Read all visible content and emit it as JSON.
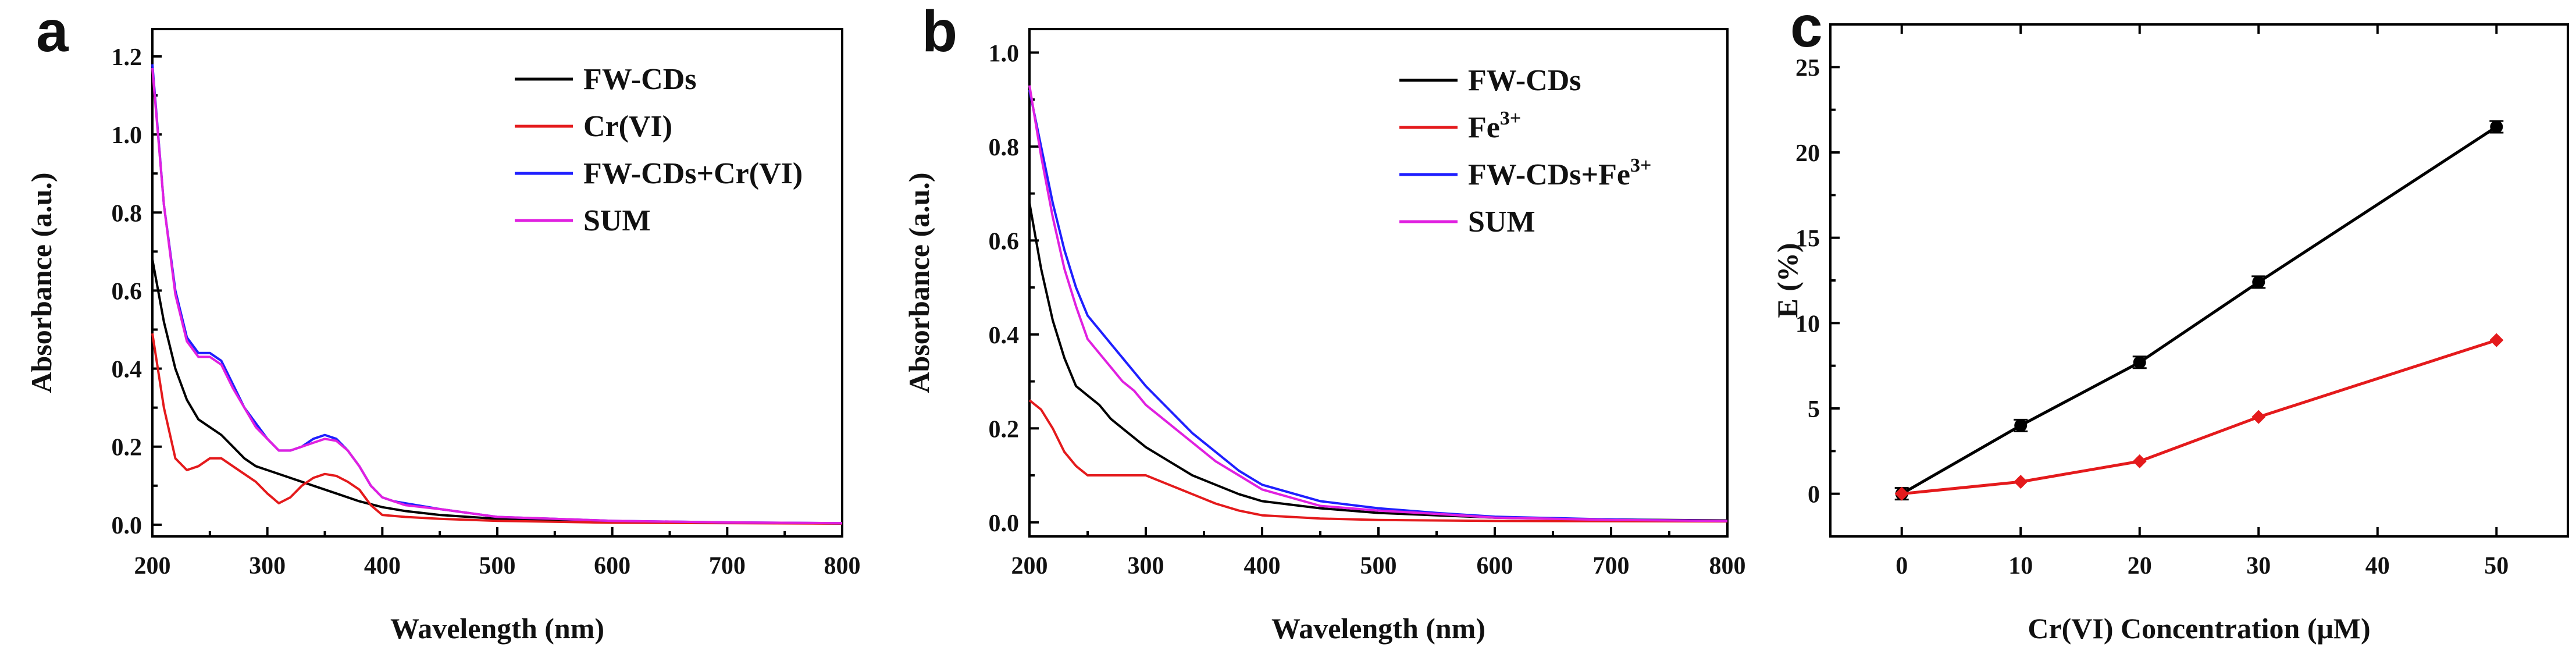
{
  "chart_data": [
    {
      "type": "line",
      "panel": "a",
      "xlabel": "Wavelength (nm)",
      "ylabel": "Absorbance (a.u.)",
      "xlim": [
        200,
        800
      ],
      "ylim": [
        -0.03,
        1.27
      ],
      "xticks": [
        200,
        300,
        400,
        500,
        600,
        700,
        800
      ],
      "yticks": [
        0.0,
        0.2,
        0.4,
        0.6,
        0.8,
        1.0,
        1.2
      ],
      "ytick_labels": [
        "0.0",
        "0.2",
        "0.4",
        "0.6",
        "0.8",
        "1.0",
        "1.2"
      ],
      "legend_position": "top-right",
      "series": [
        {
          "name": "FW-CDs",
          "color": "#000000",
          "x": [
            200,
            210,
            220,
            230,
            240,
            250,
            260,
            270,
            280,
            290,
            300,
            320,
            340,
            360,
            380,
            400,
            420,
            450,
            500,
            550,
            600,
            700,
            800
          ],
          "y": [
            0.68,
            0.52,
            0.4,
            0.32,
            0.27,
            0.25,
            0.23,
            0.2,
            0.17,
            0.15,
            0.14,
            0.12,
            0.1,
            0.08,
            0.06,
            0.045,
            0.035,
            0.025,
            0.015,
            0.01,
            0.008,
            0.005,
            0.003
          ]
        },
        {
          "name": "Cr(VI)",
          "color": "#e41a1c",
          "x": [
            200,
            210,
            220,
            230,
            240,
            250,
            260,
            270,
            280,
            290,
            300,
            310,
            320,
            330,
            340,
            350,
            360,
            370,
            380,
            390,
            400,
            420,
            450,
            500,
            600,
            800
          ],
          "y": [
            0.49,
            0.3,
            0.17,
            0.14,
            0.15,
            0.17,
            0.17,
            0.15,
            0.13,
            0.11,
            0.08,
            0.055,
            0.07,
            0.1,
            0.12,
            0.13,
            0.125,
            0.11,
            0.09,
            0.05,
            0.025,
            0.02,
            0.015,
            0.01,
            0.005,
            0.003
          ]
        },
        {
          "name": "FW-CDs+Cr(VI)",
          "color": "#1f1fff",
          "x": [
            200,
            210,
            220,
            230,
            240,
            250,
            260,
            270,
            280,
            290,
            300,
            310,
            320,
            330,
            340,
            350,
            360,
            370,
            380,
            390,
            400,
            410,
            420,
            450,
            500,
            550,
            600,
            700,
            800
          ],
          "y": [
            1.18,
            0.82,
            0.6,
            0.48,
            0.44,
            0.44,
            0.42,
            0.36,
            0.3,
            0.26,
            0.22,
            0.19,
            0.19,
            0.2,
            0.22,
            0.23,
            0.22,
            0.19,
            0.15,
            0.1,
            0.07,
            0.06,
            0.055,
            0.04,
            0.02,
            0.015,
            0.01,
            0.006,
            0.004
          ]
        },
        {
          "name": "SUM",
          "color": "#e020e0",
          "x": [
            200,
            210,
            220,
            230,
            240,
            250,
            260,
            270,
            280,
            290,
            300,
            310,
            320,
            330,
            340,
            350,
            360,
            370,
            380,
            390,
            400,
            410,
            420,
            450,
            500,
            550,
            600,
            700,
            800
          ],
          "y": [
            1.17,
            0.82,
            0.59,
            0.47,
            0.43,
            0.43,
            0.41,
            0.35,
            0.3,
            0.25,
            0.22,
            0.19,
            0.19,
            0.2,
            0.21,
            0.22,
            0.215,
            0.19,
            0.15,
            0.1,
            0.07,
            0.06,
            0.05,
            0.04,
            0.02,
            0.015,
            0.01,
            0.006,
            0.004
          ]
        }
      ]
    },
    {
      "type": "line",
      "panel": "b",
      "xlabel": "Wavelength (nm)",
      "ylabel": "Absorbance (a.u.)",
      "xlim": [
        200,
        800
      ],
      "ylim": [
        -0.03,
        1.05
      ],
      "xticks": [
        200,
        300,
        400,
        500,
        600,
        700,
        800
      ],
      "yticks": [
        0.0,
        0.2,
        0.4,
        0.6,
        0.8,
        1.0
      ],
      "ytick_labels": [
        "0.0",
        "0.2",
        "0.4",
        "0.6",
        "0.8",
        "1.0"
      ],
      "legend_position": "top-right",
      "series": [
        {
          "name": "FW-CDs",
          "sup": "",
          "color": "#000000",
          "x": [
            200,
            210,
            220,
            230,
            240,
            250,
            260,
            270,
            280,
            290,
            300,
            320,
            340,
            360,
            380,
            400,
            450,
            500,
            550,
            600,
            700,
            800
          ],
          "y": [
            0.68,
            0.54,
            0.43,
            0.35,
            0.29,
            0.27,
            0.25,
            0.22,
            0.2,
            0.18,
            0.16,
            0.13,
            0.1,
            0.08,
            0.06,
            0.045,
            0.03,
            0.02,
            0.015,
            0.01,
            0.006,
            0.004
          ]
        },
        {
          "name": "Fe",
          "sup": "3+",
          "color": "#e41a1c",
          "x": [
            200,
            210,
            220,
            230,
            240,
            250,
            260,
            270,
            280,
            290,
            300,
            320,
            340,
            360,
            380,
            400,
            450,
            500,
            600,
            800
          ],
          "y": [
            0.26,
            0.24,
            0.2,
            0.15,
            0.12,
            0.1,
            0.1,
            0.1,
            0.1,
            0.1,
            0.1,
            0.08,
            0.06,
            0.04,
            0.025,
            0.015,
            0.008,
            0.005,
            0.003,
            0.002
          ]
        },
        {
          "name": "FW-CDs+Fe",
          "sup": "3+",
          "color": "#1f1fff",
          "x": [
            200,
            210,
            220,
            230,
            240,
            250,
            260,
            270,
            280,
            290,
            300,
            320,
            340,
            360,
            380,
            400,
            450,
            500,
            550,
            600,
            700,
            800
          ],
          "y": [
            0.92,
            0.8,
            0.68,
            0.58,
            0.5,
            0.44,
            0.41,
            0.38,
            0.35,
            0.32,
            0.29,
            0.24,
            0.19,
            0.15,
            0.11,
            0.08,
            0.045,
            0.03,
            0.02,
            0.012,
            0.006,
            0.003
          ]
        },
        {
          "name": "SUM",
          "sup": "",
          "color": "#e020e0",
          "x": [
            200,
            210,
            220,
            230,
            240,
            250,
            260,
            270,
            280,
            290,
            300,
            320,
            340,
            360,
            380,
            400,
            450,
            500,
            550,
            600,
            700,
            800
          ],
          "y": [
            0.93,
            0.78,
            0.65,
            0.54,
            0.46,
            0.39,
            0.36,
            0.33,
            0.3,
            0.28,
            0.25,
            0.21,
            0.17,
            0.13,
            0.1,
            0.07,
            0.035,
            0.025,
            0.018,
            0.01,
            0.005,
            0.003
          ]
        }
      ]
    },
    {
      "type": "line",
      "panel": "c",
      "xlabel": "Cr(VI) Concentration (μM)",
      "ylabel": "E (%)",
      "xlim": [
        -6,
        56
      ],
      "ylim": [
        -2.5,
        27.5
      ],
      "xticks": [
        0,
        10,
        20,
        30,
        40,
        50
      ],
      "yticks": [
        0,
        5,
        10,
        15,
        20,
        25
      ],
      "ytick_labels": [
        "0",
        "5",
        "10",
        "15",
        "20",
        "25"
      ],
      "series": [
        {
          "name": "black",
          "color": "#000000",
          "marker": "circle",
          "x": [
            0,
            10,
            20,
            30,
            50
          ],
          "y": [
            0,
            4.0,
            7.7,
            12.4,
            21.5
          ]
        },
        {
          "name": "red",
          "color": "#e41a1c",
          "marker": "diamond",
          "x": [
            0,
            10,
            20,
            30,
            50
          ],
          "y": [
            0,
            0.7,
            1.9,
            4.5,
            9.0
          ]
        }
      ]
    }
  ],
  "panels": {
    "a": {
      "letter": "a"
    },
    "b": {
      "letter": "b"
    },
    "c": {
      "letter": "c"
    }
  }
}
